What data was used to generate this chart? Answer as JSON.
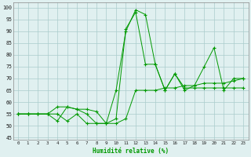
{
  "x_values": [
    0,
    1,
    2,
    3,
    4,
    5,
    6,
    7,
    8,
    9,
    10,
    11,
    12,
    13,
    14,
    15,
    16,
    17,
    18,
    19,
    20,
    21,
    22,
    23
  ],
  "series": [
    [
      55,
      55,
      55,
      55,
      52,
      58,
      57,
      55,
      51,
      51,
      65,
      90,
      99,
      97,
      76,
      65,
      72,
      65,
      67,
      75,
      83,
      65,
      70,
      70
    ],
    [
      55,
      55,
      55,
      55,
      55,
      52,
      55,
      51,
      51,
      51,
      53,
      91,
      98,
      76,
      76,
      65,
      72,
      66,
      66,
      66,
      66,
      66,
      66,
      66
    ],
    [
      55,
      55,
      55,
      55,
      58,
      58,
      57,
      57,
      56,
      51,
      51,
      53,
      65,
      65,
      65,
      66,
      66,
      67,
      67,
      68,
      68,
      68,
      69,
      70
    ]
  ],
  "line_color": "#009900",
  "marker": "+",
  "marker_size": 3,
  "bg_color": "#e0f0f0",
  "grid_color": "#aacccc",
  "xlabel": "Humidité relative (%)",
  "ylabel_ticks": [
    45,
    50,
    55,
    60,
    65,
    70,
    75,
    80,
    85,
    90,
    95,
    100
  ],
  "xlim": [
    -0.5,
    23.5
  ],
  "ylim": [
    44,
    102
  ],
  "fig_width": 3.2,
  "fig_height": 2.0,
  "dpi": 100
}
